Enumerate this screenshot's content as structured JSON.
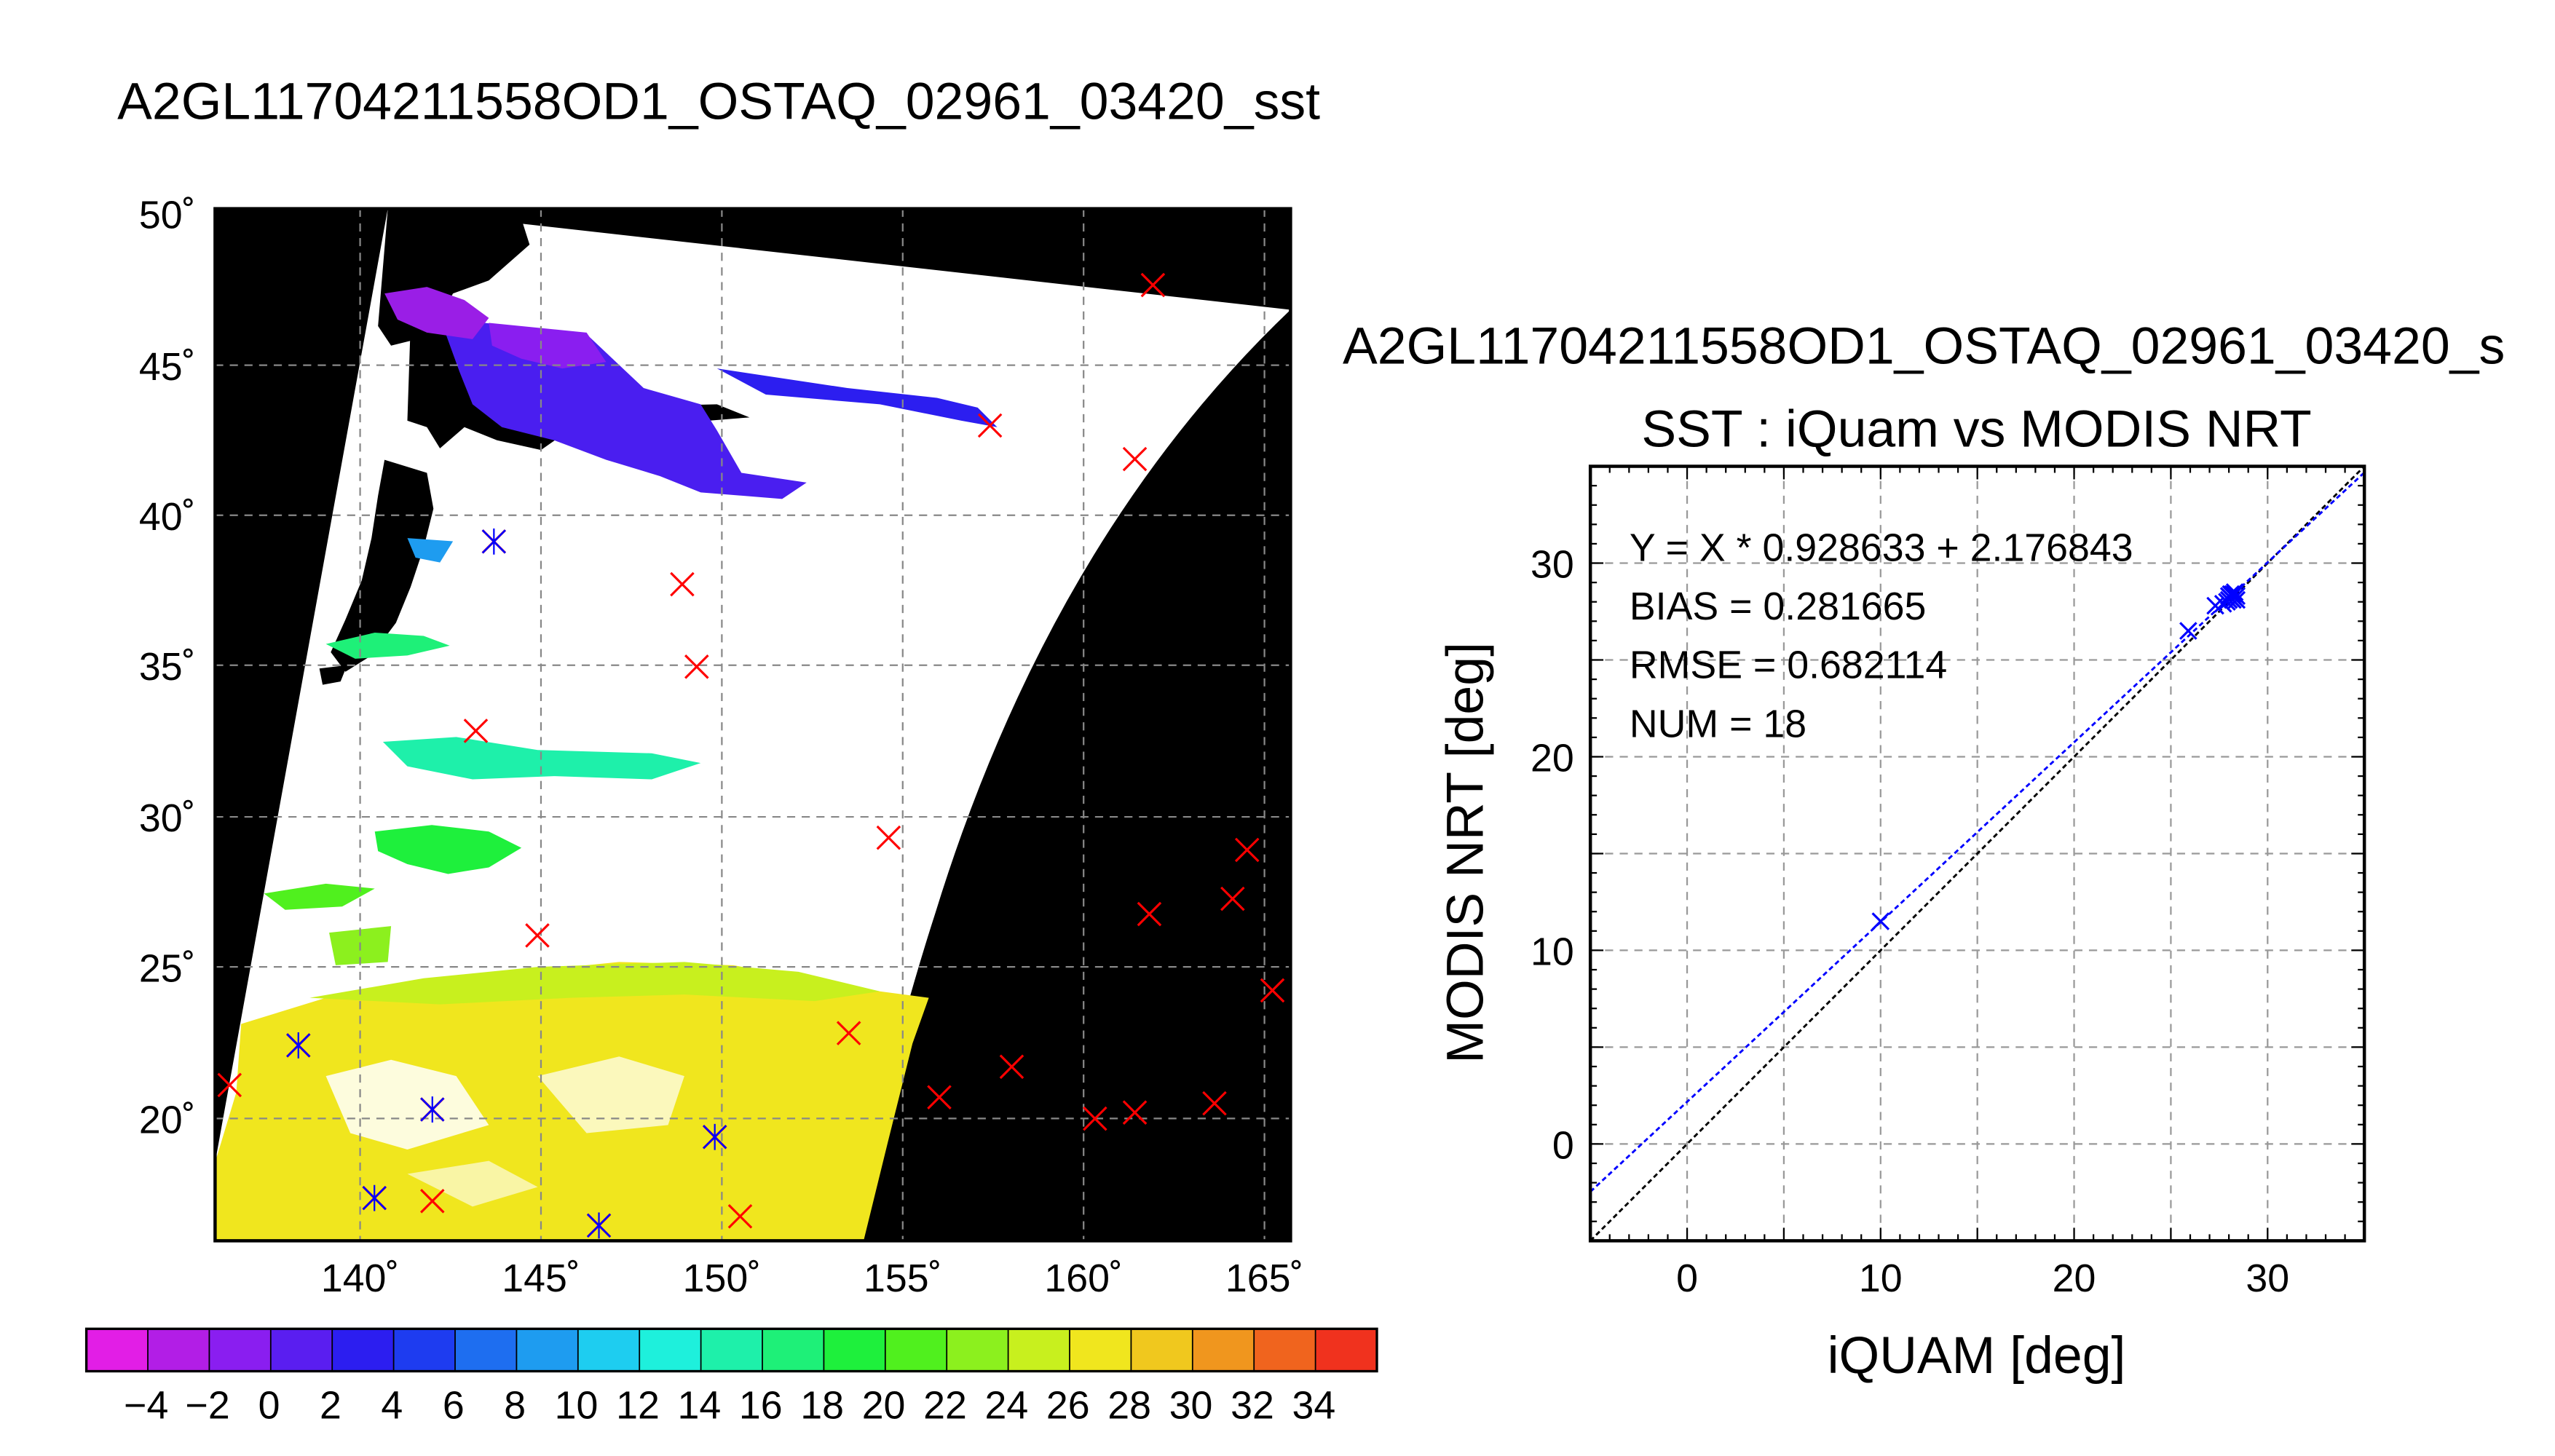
{
  "figure": {
    "main_title": "A2GL11704211558OD1_OSTAQ_02961_03420_sst"
  },
  "map": {
    "lat_labels": [
      "50˚",
      "45˚",
      "40˚",
      "35˚",
      "30˚",
      "25˚",
      "20˚"
    ],
    "lon_labels": [
      "140˚",
      "145˚",
      "150˚",
      "155˚",
      "160˚",
      "165˚"
    ]
  },
  "colorbar": {
    "tick_labels": [
      "−4",
      "−2",
      "0",
      "2",
      "4",
      "6",
      "8",
      "10",
      "12",
      "14",
      "16",
      "18",
      "20",
      "22",
      "24",
      "26",
      "28",
      "30",
      "32",
      "34"
    ],
    "colors": [
      "#e21ee6",
      "#b21ee6",
      "#8a1ef0",
      "#5a1ef0",
      "#2c1ef0",
      "#1e3cf0",
      "#1e6ef0",
      "#1e9cf0",
      "#1ecdf0",
      "#1ef0dc",
      "#1ef0aa",
      "#1ef078",
      "#1ef03c",
      "#50f01e",
      "#8cf01e",
      "#c8f01e",
      "#f0e61e",
      "#f0c81e",
      "#f0961e",
      "#f0641e",
      "#f0321e"
    ]
  },
  "chart_data": [
    {
      "type": "scatter",
      "title": "SST : iQuam vs MODIS NRT",
      "subtitle": "A2GL11704211558OD1_OSTAQ_02961_03420_s",
      "xlabel": "iQUAM [deg]",
      "ylabel": "MODIS NRT [deg]",
      "xlim": [
        -5,
        35
      ],
      "ylim": [
        -5,
        35
      ],
      "x_ticks": [
        "0",
        "10",
        "20",
        "30"
      ],
      "y_ticks": [
        "0",
        "10",
        "20",
        "30"
      ],
      "grid": true,
      "annotations": [
        "Y = X * 0.928633 + 2.176843",
        "BIAS = 0.281665",
        "RMSE = 0.682114",
        "NUM = 18"
      ],
      "fit": {
        "slope": 0.928633,
        "intercept": 2.176843,
        "color": "#0000ff"
      },
      "reference_line": {
        "slope": 1,
        "intercept": 0,
        "color": "#000000"
      },
      "marker_color": "#0000ff",
      "points": [
        {
          "x": 10.0,
          "y": 11.5
        },
        {
          "x": 25.9,
          "y": 26.5
        },
        {
          "x": 27.3,
          "y": 27.8
        },
        {
          "x": 27.7,
          "y": 27.9
        },
        {
          "x": 28.1,
          "y": 28.2
        },
        {
          "x": 28.2,
          "y": 28.4
        },
        {
          "x": 28.3,
          "y": 28.2
        },
        {
          "x": 28.4,
          "y": 28.3
        },
        {
          "x": 28.2,
          "y": 28.1
        },
        {
          "x": 28.0,
          "y": 28.3
        },
        {
          "x": 28.3,
          "y": 28.5
        },
        {
          "x": 28.1,
          "y": 28.4
        },
        {
          "x": 27.9,
          "y": 28.0
        },
        {
          "x": 28.4,
          "y": 28.1
        },
        {
          "x": 28.2,
          "y": 28.3
        },
        {
          "x": 28.3,
          "y": 28.4
        },
        {
          "x": 28.1,
          "y": 28.2
        },
        {
          "x": 28.0,
          "y": 28.1
        }
      ]
    }
  ]
}
